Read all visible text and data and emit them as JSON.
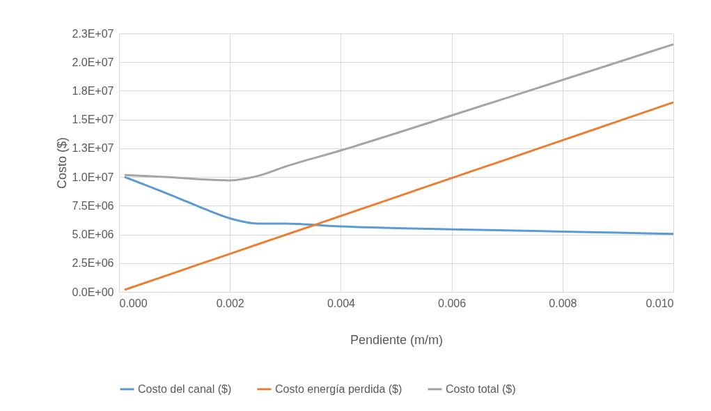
{
  "chart_data": {
    "type": "line",
    "xlabel": "Pendiente (m/m)",
    "ylabel": "Costo ($)",
    "x": [
      0.0001,
      0.001,
      0.0015,
      0.002,
      0.0025,
      0.003,
      0.004,
      0.005,
      0.006,
      0.007,
      0.008,
      0.009,
      0.01
    ],
    "series": [
      {
        "name": "Costo del canal ($)",
        "color": "#5b9bd5",
        "values": [
          10000000,
          8300000,
          7300000,
          6400000,
          5950000,
          5950000,
          5700000,
          5550000,
          5450000,
          5350000,
          5250000,
          5150000,
          5050000
        ]
      },
      {
        "name": "Costo energía perdida ($)",
        "color": "#ed7d31",
        "values": [
          180000,
          1660000,
          2490000,
          3310000,
          4140000,
          4960000,
          6610000,
          8260000,
          9910000,
          11550000,
          13200000,
          14850000,
          16500000
        ]
      },
      {
        "name": "Costo total ($)",
        "color": "#a5a5a5",
        "values": [
          10180000,
          9960000,
          9790000,
          9710000,
          10090000,
          10910000,
          12310000,
          13810000,
          15360000,
          16900000,
          18450000,
          20000000,
          21550000
        ]
      }
    ],
    "xlim": [
      0,
      0.01
    ],
    "xticks": [
      {
        "value": 0,
        "label": "0.000"
      },
      {
        "value": 0.002,
        "label": "0.002"
      },
      {
        "value": 0.004,
        "label": "0.004"
      },
      {
        "value": 0.006,
        "label": "0.006"
      },
      {
        "value": 0.008,
        "label": "0.008"
      },
      {
        "value": 0.01,
        "label": "0.010"
      }
    ],
    "ylim": [
      0,
      22500000
    ],
    "yticks": [
      {
        "value": 0,
        "label": "0.0E+00"
      },
      {
        "value": 2500000,
        "label": "2.5E+06"
      },
      {
        "value": 5000000,
        "label": "5.0E+06"
      },
      {
        "value": 7500000,
        "label": "7.5E+06"
      },
      {
        "value": 10000000,
        "label": "1.0E+07"
      },
      {
        "value": 12500000,
        "label": "1.3E+07"
      },
      {
        "value": 15000000,
        "label": "1.5E+07"
      },
      {
        "value": 17500000,
        "label": "1.8E+07"
      },
      {
        "value": 20000000,
        "label": "2.0E+07"
      },
      {
        "value": 22500000,
        "label": "2.3E+07"
      }
    ],
    "grid": true,
    "legend": "bottom",
    "line_style": "solid",
    "marker": "none"
  }
}
